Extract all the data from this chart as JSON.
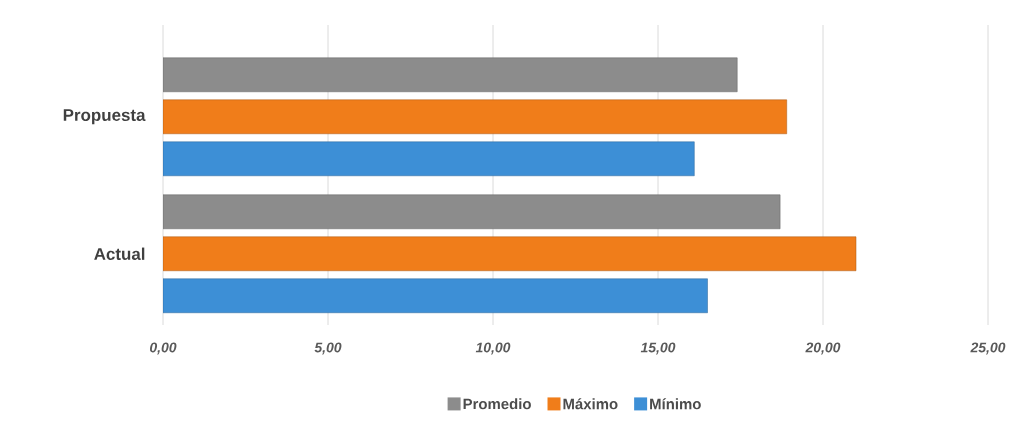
{
  "chart_data": {
    "type": "bar",
    "orientation": "horizontal",
    "categories": [
      "Propuesta",
      "Actual"
    ],
    "series": [
      {
        "name": "Promedio",
        "color": "#8c8c8c",
        "values": [
          17.4,
          18.7
        ]
      },
      {
        "name": "Máximo",
        "color": "#f07d1a",
        "values": [
          18.9,
          21.0
        ]
      },
      {
        "name": "Mínimo",
        "color": "#3d8fd6",
        "values": [
          16.1,
          16.5
        ]
      }
    ],
    "xlim": [
      0,
      25
    ],
    "xticks": [
      {
        "value": 0,
        "label": "0,00"
      },
      {
        "value": 5,
        "label": "5,00"
      },
      {
        "value": 10,
        "label": "10,00"
      },
      {
        "value": 15,
        "label": "15,00"
      },
      {
        "value": 20,
        "label": "20,00"
      },
      {
        "value": 25,
        "label": "25,00"
      }
    ],
    "grid": "x",
    "legend": "bottom"
  }
}
